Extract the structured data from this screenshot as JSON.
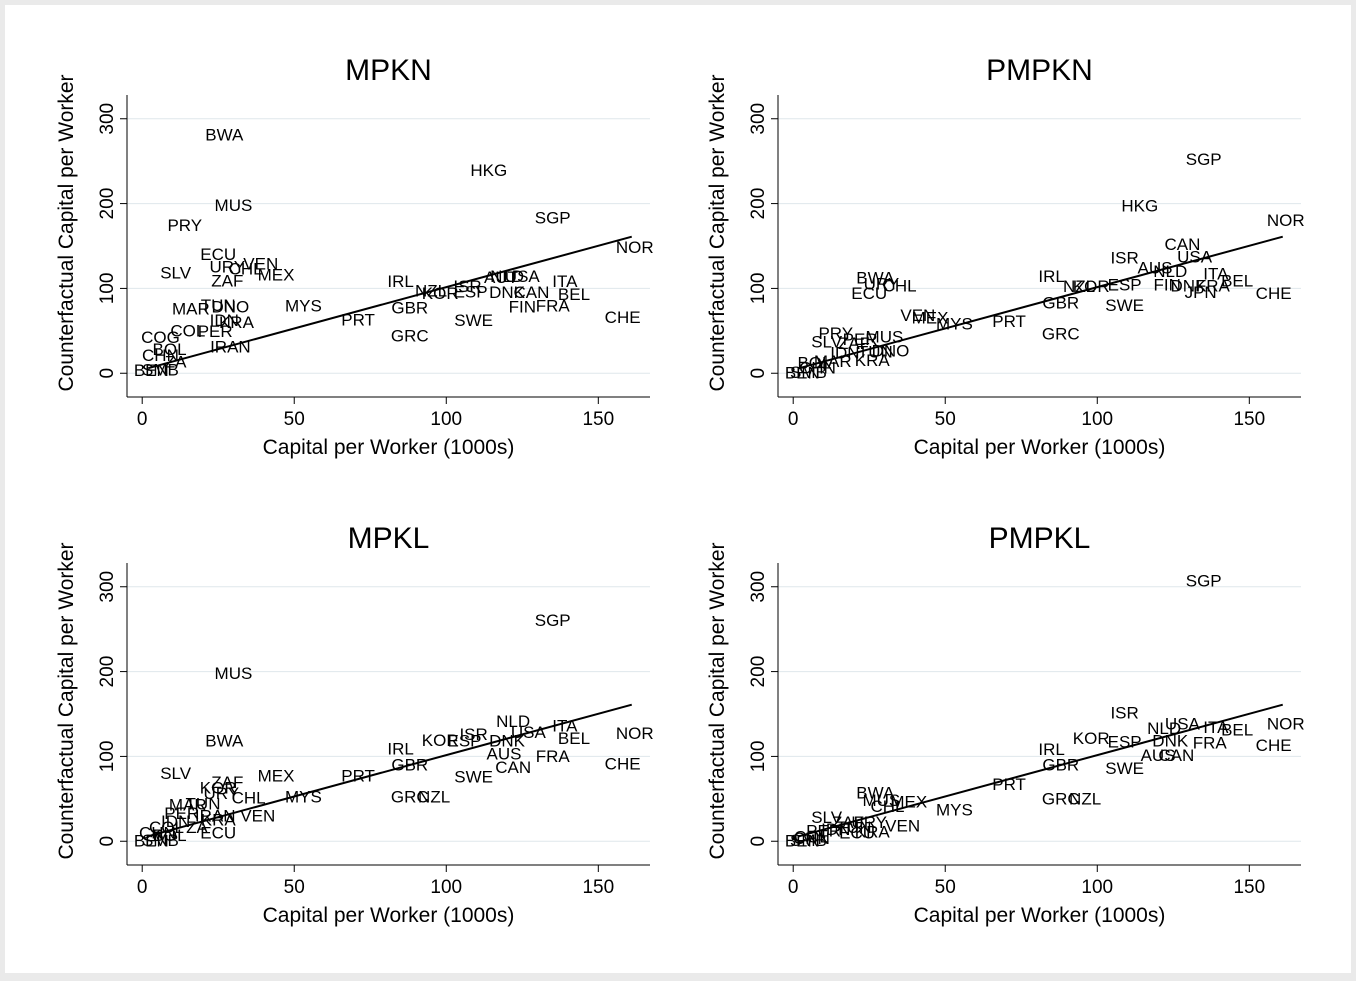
{
  "chart_data": [
    {
      "type": "scatter",
      "title": "MPKN",
      "xlabel": "Capital per Worker (1000s)",
      "ylabel": "Counterfactual Capital per Worker",
      "xlim": [
        -5,
        167
      ],
      "ylim": [
        -28,
        328
      ],
      "xticks": [
        0,
        50,
        100,
        150
      ],
      "yticks": [
        0,
        100,
        200,
        300
      ],
      "fit_line": [
        [
          2,
          6
        ],
        [
          161,
          161
        ]
      ],
      "points": [
        {
          "label": "BWA",
          "x": 27,
          "y": 281
        },
        {
          "label": "HKG",
          "x": 114,
          "y": 239
        },
        {
          "label": "MUS",
          "x": 30,
          "y": 198
        },
        {
          "label": "SGP",
          "x": 135,
          "y": 183
        },
        {
          "label": "PRY",
          "x": 14,
          "y": 174
        },
        {
          "label": "NOR",
          "x": 162,
          "y": 148
        },
        {
          "label": "ECU",
          "x": 25,
          "y": 140
        },
        {
          "label": "VEN",
          "x": 39,
          "y": 129
        },
        {
          "label": "URY",
          "x": 28,
          "y": 125
        },
        {
          "label": "CHL",
          "x": 34,
          "y": 123
        },
        {
          "label": "SLV",
          "x": 11,
          "y": 118
        },
        {
          "label": "MEX",
          "x": 44,
          "y": 116
        },
        {
          "label": "ZAF",
          "x": 28,
          "y": 109
        },
        {
          "label": "AUT",
          "x": 118,
          "y": 113
        },
        {
          "label": "NLD",
          "x": 120,
          "y": 114
        },
        {
          "label": "USA",
          "x": 125,
          "y": 114
        },
        {
          "label": "ITA",
          "x": 139,
          "y": 108
        },
        {
          "label": "IRL",
          "x": 85,
          "y": 108
        },
        {
          "label": "ISR",
          "x": 107,
          "y": 102
        },
        {
          "label": "NZL",
          "x": 95,
          "y": 97
        },
        {
          "label": "KOR",
          "x": 98,
          "y": 94
        },
        {
          "label": "ESP",
          "x": 108,
          "y": 96
        },
        {
          "label": "DNK",
          "x": 120,
          "y": 95
        },
        {
          "label": "CAN",
          "x": 128,
          "y": 95
        },
        {
          "label": "BEL",
          "x": 142,
          "y": 93
        },
        {
          "label": "MYS",
          "x": 53,
          "y": 79
        },
        {
          "label": "MAR",
          "x": 16,
          "y": 76
        },
        {
          "label": "TUN",
          "x": 25,
          "y": 80
        },
        {
          "label": "DNO",
          "x": 29,
          "y": 78
        },
        {
          "label": "GBR",
          "x": 88,
          "y": 77
        },
        {
          "label": "FIN",
          "x": 125,
          "y": 78
        },
        {
          "label": "FRA",
          "x": 135,
          "y": 79
        },
        {
          "label": "CHE",
          "x": 158,
          "y": 66
        },
        {
          "label": "PRT",
          "x": 71,
          "y": 63
        },
        {
          "label": "SWE",
          "x": 109,
          "y": 62
        },
        {
          "label": "IDN",
          "x": 27,
          "y": 62
        },
        {
          "label": "KRA",
          "x": 31,
          "y": 60
        },
        {
          "label": "COL",
          "x": 15,
          "y": 50
        },
        {
          "label": "PER",
          "x": 24,
          "y": 49
        },
        {
          "label": "GRC",
          "x": 88,
          "y": 44
        },
        {
          "label": "COG",
          "x": 6,
          "y": 42
        },
        {
          "label": "BOL",
          "x": 9,
          "y": 28
        },
        {
          "label": "IRAN",
          "x": 29,
          "y": 31
        },
        {
          "label": "CHN",
          "x": 6,
          "y": 21
        },
        {
          "label": "ZA",
          "x": 11,
          "y": 13
        },
        {
          "label": "BEN",
          "x": 3,
          "y": 3
        },
        {
          "label": "SMB",
          "x": 6,
          "y": 4
        }
      ]
    },
    {
      "type": "scatter",
      "title": "PMPKN",
      "xlabel": "Capital per Worker (1000s)",
      "ylabel": "Counterfactual Capital per Worker",
      "xlim": [
        -5,
        167
      ],
      "ylim": [
        -28,
        328
      ],
      "xticks": [
        0,
        50,
        100,
        150
      ],
      "yticks": [
        0,
        100,
        200,
        300
      ],
      "fit_line": [
        [
          2,
          6
        ],
        [
          161,
          161
        ]
      ],
      "points": [
        {
          "label": "SGP",
          "x": 135,
          "y": 252
        },
        {
          "label": "HKG",
          "x": 114,
          "y": 197
        },
        {
          "label": "NOR",
          "x": 162,
          "y": 180
        },
        {
          "label": "CAN",
          "x": 128,
          "y": 152
        },
        {
          "label": "ISR",
          "x": 109,
          "y": 136
        },
        {
          "label": "USA",
          "x": 132,
          "y": 137
        },
        {
          "label": "AUS",
          "x": 119,
          "y": 124
        },
        {
          "label": "NLD",
          "x": 124,
          "y": 120
        },
        {
          "label": "ITA",
          "x": 139,
          "y": 117
        },
        {
          "label": "IRL",
          "x": 85,
          "y": 114
        },
        {
          "label": "BEL",
          "x": 146,
          "y": 109
        },
        {
          "label": "KOR",
          "x": 98,
          "y": 102
        },
        {
          "label": "NZL",
          "x": 94,
          "y": 102
        },
        {
          "label": "ESP",
          "x": 109,
          "y": 104
        },
        {
          "label": "FIN",
          "x": 123,
          "y": 104
        },
        {
          "label": "DNK",
          "x": 130,
          "y": 103
        },
        {
          "label": "FRA",
          "x": 138,
          "y": 103
        },
        {
          "label": "JPN",
          "x": 134,
          "y": 95
        },
        {
          "label": "CHE",
          "x": 158,
          "y": 94
        },
        {
          "label": "BWA",
          "x": 27,
          "y": 112
        },
        {
          "label": "URY",
          "x": 29,
          "y": 105
        },
        {
          "label": "CHL",
          "x": 35,
          "y": 103
        },
        {
          "label": "ECU",
          "x": 25,
          "y": 94
        },
        {
          "label": "GBR",
          "x": 88,
          "y": 83
        },
        {
          "label": "SWE",
          "x": 109,
          "y": 80
        },
        {
          "label": "VEN",
          "x": 41,
          "y": 68
        },
        {
          "label": "MEX",
          "x": 45,
          "y": 65
        },
        {
          "label": "MYS",
          "x": 53,
          "y": 58
        },
        {
          "label": "PRT",
          "x": 71,
          "y": 61
        },
        {
          "label": "GRC",
          "x": 88,
          "y": 46
        },
        {
          "label": "PRY",
          "x": 14,
          "y": 47
        },
        {
          "label": "SLV",
          "x": 11,
          "y": 37
        },
        {
          "label": "MUS",
          "x": 30,
          "y": 43
        },
        {
          "label": "PER",
          "x": 22,
          "y": 40
        },
        {
          "label": "ZAF",
          "x": 20,
          "y": 35
        },
        {
          "label": "IDN",
          "x": 17,
          "y": 24
        },
        {
          "label": "TUN",
          "x": 27,
          "y": 25
        },
        {
          "label": "DNO",
          "x": 32,
          "y": 26
        },
        {
          "label": "KRA",
          "x": 26,
          "y": 15
        },
        {
          "label": "MAR",
          "x": 13,
          "y": 14
        },
        {
          "label": "BOL",
          "x": 7,
          "y": 12
        },
        {
          "label": "CHN",
          "x": 8,
          "y": 6
        },
        {
          "label": "BEN",
          "x": 3,
          "y": 0
        },
        {
          "label": "SMB",
          "x": 5,
          "y": 1
        }
      ]
    },
    {
      "type": "scatter",
      "title": "MPKL",
      "xlabel": "Capital per Worker (1000s)",
      "ylabel": "Counterfactual Capital per Worker",
      "xlim": [
        -5,
        167
      ],
      "ylim": [
        -28,
        328
      ],
      "xticks": [
        0,
        50,
        100,
        150
      ],
      "yticks": [
        0,
        100,
        200,
        300
      ],
      "fit_line": [
        [
          2,
          6
        ],
        [
          161,
          161
        ]
      ],
      "points": [
        {
          "label": "SGP",
          "x": 135,
          "y": 260
        },
        {
          "label": "MUS",
          "x": 30,
          "y": 198
        },
        {
          "label": "NOR",
          "x": 162,
          "y": 127
        },
        {
          "label": "NLD",
          "x": 122,
          "y": 141
        },
        {
          "label": "ITA",
          "x": 139,
          "y": 136
        },
        {
          "label": "USA",
          "x": 127,
          "y": 128
        },
        {
          "label": "ISR",
          "x": 109,
          "y": 126
        },
        {
          "label": "KOR",
          "x": 98,
          "y": 119
        },
        {
          "label": "ESP",
          "x": 106,
          "y": 118
        },
        {
          "label": "DNK",
          "x": 120,
          "y": 118
        },
        {
          "label": "BEL",
          "x": 142,
          "y": 121
        },
        {
          "label": "IRL",
          "x": 85,
          "y": 109
        },
        {
          "label": "AUS",
          "x": 119,
          "y": 103
        },
        {
          "label": "FRA",
          "x": 135,
          "y": 100
        },
        {
          "label": "BWA",
          "x": 27,
          "y": 118
        },
        {
          "label": "CHE",
          "x": 158,
          "y": 91
        },
        {
          "label": "GBR",
          "x": 88,
          "y": 90
        },
        {
          "label": "CAN",
          "x": 122,
          "y": 87
        },
        {
          "label": "PRT",
          "x": 71,
          "y": 77
        },
        {
          "label": "SWE",
          "x": 109,
          "y": 76
        },
        {
          "label": "SLV",
          "x": 11,
          "y": 80
        },
        {
          "label": "MEX",
          "x": 44,
          "y": 77
        },
        {
          "label": "ZAF",
          "x": 28,
          "y": 69
        },
        {
          "label": "KOR",
          "x": 25,
          "y": 63
        },
        {
          "label": "URY",
          "x": 26,
          "y": 56
        },
        {
          "label": "CHL",
          "x": 35,
          "y": 51
        },
        {
          "label": "MYS",
          "x": 53,
          "y": 52
        },
        {
          "label": "GRC",
          "x": 88,
          "y": 52
        },
        {
          "label": "NZL",
          "x": 96,
          "y": 52
        },
        {
          "label": "MAR",
          "x": 15,
          "y": 43
        },
        {
          "label": "TUN",
          "x": 20,
          "y": 44
        },
        {
          "label": "PER",
          "x": 13,
          "y": 33
        },
        {
          "label": "IRAN",
          "x": 24,
          "y": 30
        },
        {
          "label": "VEN",
          "x": 38,
          "y": 30
        },
        {
          "label": "IDN",
          "x": 11,
          "y": 23
        },
        {
          "label": "KRA",
          "x": 25,
          "y": 25
        },
        {
          "label": "ECU",
          "x": 25,
          "y": 10
        },
        {
          "label": "ZA",
          "x": 18,
          "y": 16
        },
        {
          "label": "COL",
          "x": 8,
          "y": 16
        },
        {
          "label": "CHN",
          "x": 5,
          "y": 10
        },
        {
          "label": "BOL",
          "x": 9,
          "y": 7
        },
        {
          "label": "BEN",
          "x": 3,
          "y": 0
        },
        {
          "label": "SMB",
          "x": 6,
          "y": 1
        }
      ]
    },
    {
      "type": "scatter",
      "title": "PMPKL",
      "xlabel": "Capital per Worker (1000s)",
      "ylabel": "Counterfactual Capital per Worker",
      "xlim": [
        -5,
        167
      ],
      "ylim": [
        -28,
        328
      ],
      "xticks": [
        0,
        50,
        100,
        150
      ],
      "yticks": [
        0,
        100,
        200,
        300
      ],
      "fit_line": [
        [
          2,
          6
        ],
        [
          161,
          161
        ]
      ],
      "points": [
        {
          "label": "SGP",
          "x": 135,
          "y": 307
        },
        {
          "label": "ISR",
          "x": 109,
          "y": 151
        },
        {
          "label": "NOR",
          "x": 162,
          "y": 138
        },
        {
          "label": "USA",
          "x": 128,
          "y": 138
        },
        {
          "label": "ITA",
          "x": 139,
          "y": 134
        },
        {
          "label": "NLD",
          "x": 122,
          "y": 133
        },
        {
          "label": "BEL",
          "x": 146,
          "y": 131
        },
        {
          "label": "KOR",
          "x": 98,
          "y": 121
        },
        {
          "label": "ESP",
          "x": 109,
          "y": 117
        },
        {
          "label": "DNK",
          "x": 124,
          "y": 118
        },
        {
          "label": "FRA",
          "x": 137,
          "y": 116
        },
        {
          "label": "CHE",
          "x": 158,
          "y": 113
        },
        {
          "label": "IRL",
          "x": 85,
          "y": 108
        },
        {
          "label": "AUS",
          "x": 120,
          "y": 101
        },
        {
          "label": "CAN",
          "x": 126,
          "y": 101
        },
        {
          "label": "GBR",
          "x": 88,
          "y": 90
        },
        {
          "label": "SWE",
          "x": 109,
          "y": 86
        },
        {
          "label": "PRT",
          "x": 71,
          "y": 67
        },
        {
          "label": "BWA",
          "x": 27,
          "y": 57
        },
        {
          "label": "MUS",
          "x": 29,
          "y": 48
        },
        {
          "label": "MEX",
          "x": 38,
          "y": 46
        },
        {
          "label": "CHL",
          "x": 31,
          "y": 41
        },
        {
          "label": "MYS",
          "x": 53,
          "y": 37
        },
        {
          "label": "GRC",
          "x": 88,
          "y": 50
        },
        {
          "label": "NZL",
          "x": 96,
          "y": 50
        },
        {
          "label": "SLV",
          "x": 11,
          "y": 28
        },
        {
          "label": "ZAF",
          "x": 18,
          "y": 22
        },
        {
          "label": "URY",
          "x": 25,
          "y": 22
        },
        {
          "label": "VEN",
          "x": 36,
          "y": 18
        },
        {
          "label": "TUN",
          "x": 20,
          "y": 16
        },
        {
          "label": "IDN",
          "x": 14,
          "y": 14
        },
        {
          "label": "PER",
          "x": 10,
          "y": 12
        },
        {
          "label": "KRA",
          "x": 26,
          "y": 11
        },
        {
          "label": "ECU",
          "x": 21,
          "y": 10
        },
        {
          "label": "COL",
          "x": 6,
          "y": 5
        },
        {
          "label": "CHN",
          "x": 6,
          "y": 3
        },
        {
          "label": "BEN",
          "x": 3,
          "y": 0
        },
        {
          "label": "SMB",
          "x": 5,
          "y": 1
        }
      ]
    }
  ]
}
